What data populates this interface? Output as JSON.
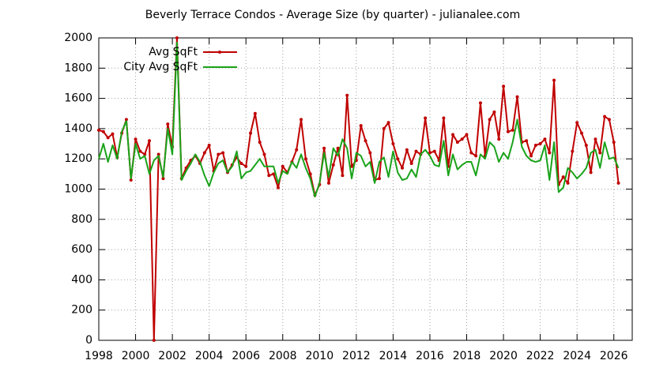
{
  "chart_data": {
    "type": "line",
    "title": "Beverly Terrace Condos - Average Size (by quarter) - julianalee.com",
    "x": [
      1998,
      1998.25,
      1998.5,
      1998.75,
      1999,
      1999.25,
      1999.5,
      1999.75,
      2000,
      2000.25,
      2000.5,
      2000.75,
      2001,
      2001.25,
      2001.5,
      2001.75,
      2002,
      2002.25,
      2002.5,
      2002.75,
      2003,
      2003.25,
      2003.5,
      2003.75,
      2004,
      2004.25,
      2004.5,
      2004.75,
      2005,
      2005.25,
      2005.5,
      2005.75,
      2006,
      2006.25,
      2006.5,
      2006.75,
      2007,
      2007.25,
      2007.5,
      2007.75,
      2008,
      2008.25,
      2008.5,
      2008.75,
      2009,
      2009.25,
      2009.5,
      2009.75,
      2010,
      2010.25,
      2010.5,
      2010.75,
      2011,
      2011.25,
      2011.5,
      2011.75,
      2012,
      2012.25,
      2012.5,
      2012.75,
      2013,
      2013.25,
      2013.5,
      2013.75,
      2014,
      2014.25,
      2014.5,
      2014.75,
      2015,
      2015.25,
      2015.5,
      2015.75,
      2016,
      2016.25,
      2016.5,
      2016.75,
      2017,
      2017.25,
      2017.5,
      2017.75,
      2018,
      2018.25,
      2018.5,
      2018.75,
      2019,
      2019.25,
      2019.5,
      2019.75,
      2020,
      2020.25,
      2020.5,
      2020.75,
      2021,
      2021.25,
      2021.5,
      2021.75,
      2022,
      2022.25,
      2022.5,
      2022.75,
      2023,
      2023.25,
      2023.5,
      2023.75,
      2024,
      2024.25,
      2024.5,
      2024.75,
      2025,
      2025.25,
      2025.5,
      2025.75,
      2026,
      2026.25
    ],
    "series": [
      {
        "name": "Avg SqFt",
        "color": "#c00000",
        "marker": true,
        "values": [
          1390,
          1380,
          1340,
          1365,
          1210,
          1370,
          1460,
          1060,
          1330,
          1250,
          1230,
          1320,
          0,
          1230,
          1070,
          1430,
          1280,
          2000,
          1070,
          1140,
          1190,
          1220,
          1170,
          1240,
          1290,
          1120,
          1230,
          1240,
          1110,
          1160,
          1210,
          1170,
          1150,
          1370,
          1500,
          1310,
          1230,
          1090,
          1100,
          1010,
          1150,
          1110,
          1180,
          1260,
          1460,
          1200,
          1100,
          960,
          1030,
          1270,
          1040,
          1160,
          1270,
          1090,
          1620,
          1150,
          1190,
          1420,
          1320,
          1240,
          1060,
          1070,
          1400,
          1440,
          1300,
          1200,
          1140,
          1260,
          1170,
          1250,
          1230,
          1470,
          1240,
          1250,
          1190,
          1470,
          1150,
          1360,
          1310,
          1330,
          1360,
          1240,
          1220,
          1570,
          1220,
          1460,
          1510,
          1330,
          1680,
          1380,
          1390,
          1610,
          1310,
          1320,
          1220,
          1290,
          1300,
          1330,
          1240,
          1720,
          1030,
          1080,
          1040,
          1250,
          1440,
          1370,
          1290,
          1110,
          1330,
          1240,
          1480,
          1460,
          1310,
          1040
        ]
      },
      {
        "name": "City Avg SqFt",
        "color": "#1aa31a",
        "marker": false,
        "values": [
          1200,
          1300,
          1180,
          1290,
          1200,
          1380,
          1450,
          1070,
          1300,
          1200,
          1220,
          1100,
          1190,
          1220,
          1080,
          1400,
          1230,
          1970,
          1060,
          1120,
          1170,
          1230,
          1180,
          1090,
          1020,
          1110,
          1170,
          1190,
          1110,
          1150,
          1250,
          1070,
          1110,
          1120,
          1160,
          1200,
          1150,
          1150,
          1150,
          1040,
          1120,
          1100,
          1180,
          1140,
          1230,
          1140,
          1070,
          950,
          1040,
          1240,
          1080,
          1270,
          1220,
          1330,
          1270,
          1070,
          1240,
          1220,
          1150,
          1180,
          1040,
          1180,
          1210,
          1080,
          1250,
          1110,
          1060,
          1070,
          1130,
          1080,
          1230,
          1260,
          1220,
          1160,
          1150,
          1320,
          1090,
          1230,
          1130,
          1160,
          1180,
          1180,
          1090,
          1230,
          1200,
          1310,
          1280,
          1180,
          1240,
          1200,
          1310,
          1460,
          1280,
          1220,
          1190,
          1180,
          1190,
          1290,
          1060,
          1310,
          980,
          1010,
          1140,
          1110,
          1070,
          1100,
          1140,
          1240,
          1260,
          1140,
          1310,
          1200,
          1210,
          1140
        ]
      }
    ],
    "xlim": [
      1998,
      2027
    ],
    "xticks": [
      1998,
      2000,
      2002,
      2004,
      2006,
      2008,
      2010,
      2012,
      2014,
      2016,
      2018,
      2020,
      2022,
      2024,
      2026
    ],
    "ylim": [
      0,
      2000
    ],
    "yticks": [
      0,
      200,
      400,
      600,
      800,
      1000,
      1200,
      1400,
      1600,
      1800,
      2000
    ],
    "grid": true,
    "legend": "top-left"
  }
}
